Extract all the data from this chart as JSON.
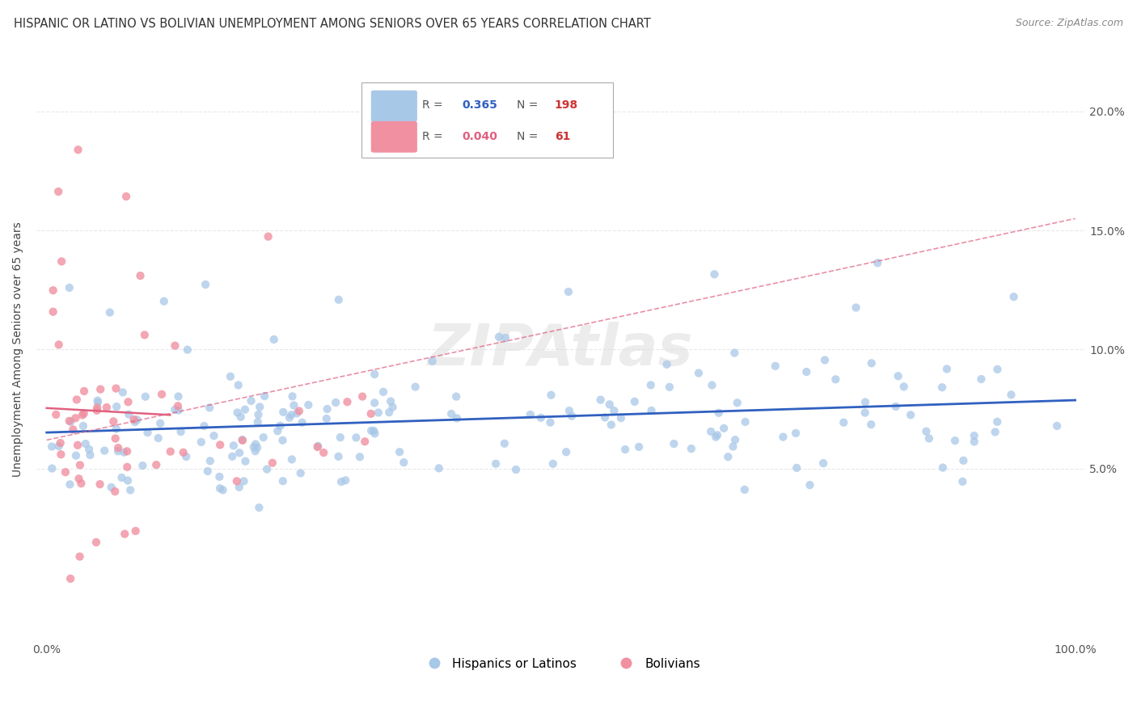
{
  "title": "HISPANIC OR LATINO VS BOLIVIAN UNEMPLOYMENT AMONG SENIORS OVER 65 YEARS CORRELATION CHART",
  "source": "Source: ZipAtlas.com",
  "ylabel": "Unemployment Among Seniors over 65 years",
  "xlim": [
    -0.01,
    1.01
  ],
  "ylim": [
    -0.022,
    0.222
  ],
  "xticks": [
    0.0,
    0.1,
    0.2,
    0.3,
    0.4,
    0.5,
    0.6,
    0.7,
    0.8,
    0.9,
    1.0
  ],
  "xticklabels": [
    "0.0%",
    "",
    "",
    "",
    "",
    "",
    "",
    "",
    "",
    "",
    "100.0%"
  ],
  "yticks": [
    0.0,
    0.05,
    0.1,
    0.15,
    0.2
  ],
  "yticklabels_right": [
    "",
    "5.0%",
    "10.0%",
    "15.0%",
    "20.0%"
  ],
  "blue_label": "Hispanics or Latinos",
  "pink_label": "Bolivians",
  "blue_color": "#A8C8E8",
  "pink_color": "#F090A0",
  "blue_line_color": "#3060C0",
  "pink_line_color": "#E06080",
  "R_blue": 0.365,
  "N_blue": 198,
  "R_pink": 0.04,
  "N_pink": 61,
  "grid_color": "#E8E8E8",
  "background_color": "#FFFFFF",
  "watermark": "ZIPAtlas",
  "legend_R_blue_color": "#3060C0",
  "legend_R_pink_color": "#E06080",
  "legend_N_blue_color": "#CC3333",
  "legend_N_pink_color": "#CC3333"
}
